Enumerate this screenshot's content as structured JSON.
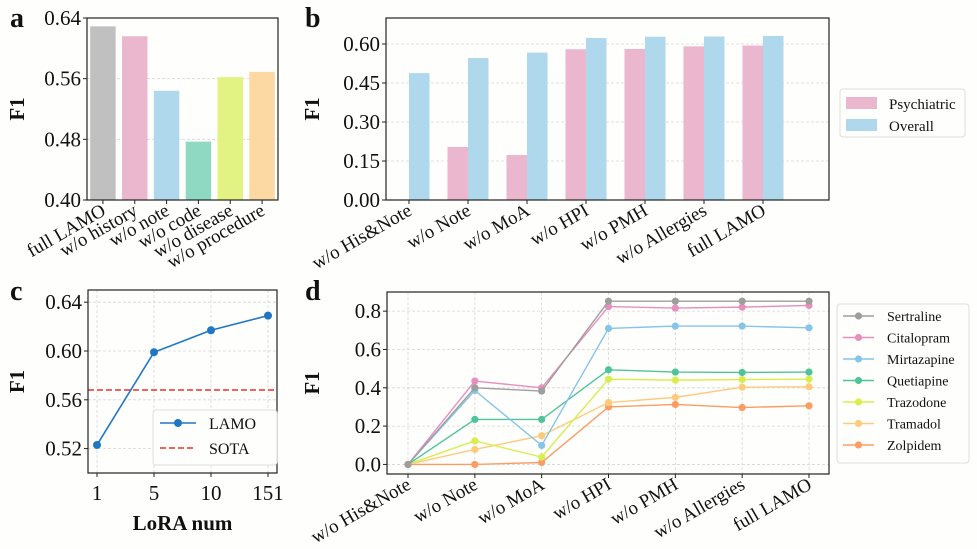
{
  "chart_data": [
    {
      "panel": "a",
      "type": "bar",
      "title": "",
      "xlabel": "",
      "ylabel": "F1",
      "ylim": [
        0.4,
        0.64
      ],
      "yticks": [
        "0.40",
        "0.48",
        "0.56",
        "0.64"
      ],
      "ytick_values": [
        0.4,
        0.48,
        0.56,
        0.64
      ],
      "grid": "y dashed",
      "categories": [
        "full LAMO",
        "w/o history",
        "w/o note",
        "w/o code",
        "w/o disease",
        "w/o procedure"
      ],
      "values": [
        0.629,
        0.616,
        0.544,
        0.477,
        0.562,
        0.569
      ],
      "colors": [
        "#c0c0c0",
        "#ebb7cf",
        "#b0d8ec",
        "#8fd8c2",
        "#e2f383",
        "#fcd9a3"
      ]
    },
    {
      "panel": "b",
      "type": "bar",
      "title": "",
      "xlabel": "",
      "ylabel": "F1",
      "ylim": [
        0.0,
        0.7
      ],
      "yticks": [
        "0.00",
        "0.15",
        "0.30",
        "0.45",
        "0.60"
      ],
      "ytick_values": [
        0.0,
        0.15,
        0.3,
        0.45,
        0.6
      ],
      "grid": "y dashed",
      "legend_position": "right-outside",
      "categories": [
        "w/o His&Note",
        "w/o Note",
        "w/o MoA",
        "w/o HPI",
        "w/o PMH",
        "w/o Allergies",
        "full LAMO"
      ],
      "series": [
        {
          "name": "Psychiatric",
          "color": "#ebb7cf",
          "values": [
            0.0,
            0.204,
            0.173,
            0.58,
            0.581,
            0.591,
            0.594
          ]
        },
        {
          "name": "Overall",
          "color": "#b0d8ec",
          "values": [
            0.488,
            0.546,
            0.567,
            0.623,
            0.628,
            0.629,
            0.631
          ]
        }
      ]
    },
    {
      "panel": "c",
      "type": "line",
      "title": "",
      "xlabel": "LoRA num",
      "ylabel": "F1",
      "ylim": [
        0.5,
        0.65
      ],
      "yticks": [
        "0.52",
        "0.56",
        "0.60",
        "0.64"
      ],
      "ytick_values": [
        0.52,
        0.56,
        0.6,
        0.64
      ],
      "x": [
        "1",
        "5",
        "10",
        "151"
      ],
      "grid": "both dashed",
      "legend_position": "lower-right",
      "series": [
        {
          "name": "LAMO",
          "color": "#1f77c4",
          "style": "solid-marker",
          "values": [
            0.523,
            0.599,
            0.617,
            0.629
          ]
        },
        {
          "name": "SOTA",
          "color": "#e8312a",
          "style": "dashed",
          "value": 0.568
        }
      ]
    },
    {
      "panel": "d",
      "type": "line",
      "title": "",
      "xlabel": "",
      "ylabel": "F1",
      "ylim": [
        -0.05,
        0.9
      ],
      "yticks": [
        "0.0",
        "0.2",
        "0.4",
        "0.6",
        "0.8"
      ],
      "ytick_values": [
        0.0,
        0.2,
        0.4,
        0.6,
        0.8
      ],
      "grid": "both dashed",
      "legend_position": "right-outside",
      "x": [
        "w/o His&Note",
        "w/o Note",
        "w/o MoA",
        "w/o HPI",
        "w/o PMH",
        "w/o Allergies",
        "full LAMO"
      ],
      "series": [
        {
          "name": "Sertraline",
          "color": "#9e9e9e",
          "values": [
            0.0,
            0.4,
            0.383,
            0.852,
            0.852,
            0.852,
            0.852
          ]
        },
        {
          "name": "Citalopram",
          "color": "#e78fbd",
          "values": [
            0.0,
            0.435,
            0.4,
            0.824,
            0.816,
            0.821,
            0.83
          ]
        },
        {
          "name": "Mirtazapine",
          "color": "#86c5e8",
          "values": [
            0.0,
            0.386,
            0.099,
            0.71,
            0.722,
            0.722,
            0.713
          ]
        },
        {
          "name": "Quetiapine",
          "color": "#4fc49a",
          "values": [
            0.0,
            0.235,
            0.235,
            0.494,
            0.482,
            0.48,
            0.482
          ]
        },
        {
          "name": "Trazodone",
          "color": "#d7ee4d",
          "values": [
            0.0,
            0.123,
            0.038,
            0.445,
            0.44,
            0.443,
            0.445
          ]
        },
        {
          "name": "Tramadol",
          "color": "#fdcb7e",
          "values": [
            0.0,
            0.078,
            0.15,
            0.323,
            0.35,
            0.403,
            0.405
          ]
        },
        {
          "name": "Zolpidem",
          "color": "#fb9d62",
          "values": [
            0.0,
            0.0,
            0.01,
            0.3,
            0.313,
            0.297,
            0.306
          ]
        }
      ]
    }
  ],
  "panel_labels": [
    "a",
    "b",
    "c",
    "d"
  ]
}
